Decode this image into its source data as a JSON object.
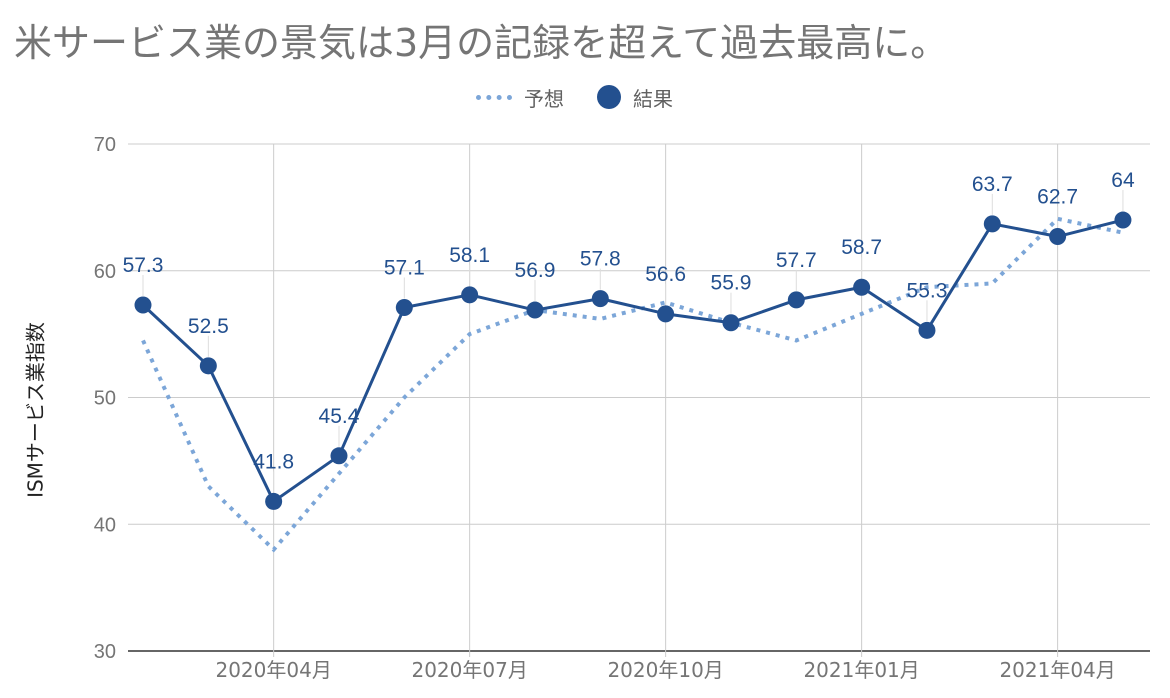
{
  "chart_data": {
    "type": "line",
    "title": "米サービス業の景気は3月の記録を超えて過去最高に。",
    "xlabel": "",
    "ylabel": "ISMサービス業指数",
    "ylim": [
      30,
      70
    ],
    "yticks": [
      30,
      40,
      50,
      60,
      70
    ],
    "x": [
      "2020-02",
      "2020-03",
      "2020-04",
      "2020-05",
      "2020-06",
      "2020-07",
      "2020-08",
      "2020-09",
      "2020-10",
      "2020-11",
      "2020-12",
      "2021-01",
      "2021-02",
      "2021-03",
      "2021-04",
      "2021-05"
    ],
    "x_tick_labels": [
      {
        "x": "2020-04",
        "label": "2020年04月"
      },
      {
        "x": "2020-07",
        "label": "2020年07月"
      },
      {
        "x": "2020-10",
        "label": "2020年10月"
      },
      {
        "x": "2021-01",
        "label": "2021年01月"
      },
      {
        "x": "2021-04",
        "label": "2021年04月"
      }
    ],
    "grid": true,
    "legend_position": "top-center",
    "series": [
      {
        "name": "予想",
        "style": "dotted",
        "color": "#7ca6d8",
        "values": [
          54.5,
          43.0,
          38.0,
          44.0,
          50.0,
          55.0,
          56.9,
          56.2,
          57.5,
          55.9,
          54.5,
          56.6,
          58.7,
          59.0,
          64.1,
          63.0
        ]
      },
      {
        "name": "結果",
        "style": "solid-markers",
        "color": "#23508f",
        "values": [
          57.3,
          52.5,
          41.8,
          45.4,
          57.1,
          58.1,
          56.9,
          57.8,
          56.6,
          55.9,
          57.7,
          58.7,
          55.3,
          63.7,
          62.7,
          64
        ],
        "data_labels": [
          "57.3",
          "52.5",
          "41.8",
          "45.4",
          "57.1",
          "58.1",
          "56.9",
          "57.8",
          "56.6",
          "55.9",
          "57.7",
          "58.7",
          "55.3",
          "63.7",
          "62.7",
          "64"
        ]
      }
    ]
  }
}
